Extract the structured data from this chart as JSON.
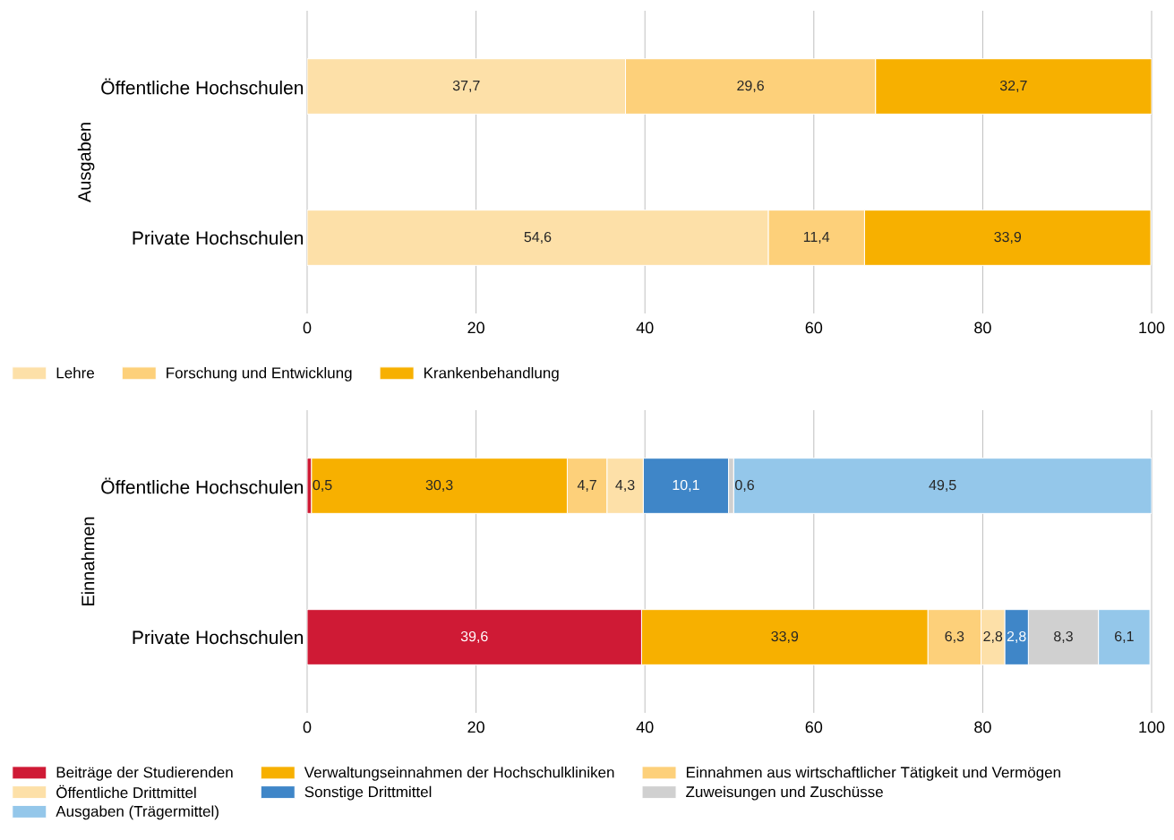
{
  "chart_data": [
    {
      "type": "bar",
      "orientation": "horizontal",
      "stacked": true,
      "ylabel": "Ausgaben",
      "categories": [
        "Öffentliche Hochschulen",
        "Private Hochschulen"
      ],
      "xlim": [
        0,
        100
      ],
      "xticks": [
        0,
        20,
        40,
        60,
        80,
        100
      ],
      "grid": "x",
      "legend": "bottom",
      "series": [
        {
          "name": "Lehre",
          "color": "#fde0a8",
          "values": [
            37.7,
            54.6
          ],
          "value_labels": [
            "37,7",
            "54,6"
          ]
        },
        {
          "name": "Forschung und Entwicklung",
          "color": "#fdd07a",
          "values": [
            29.6,
            11.4
          ],
          "value_labels": [
            "29,6",
            "11,4"
          ]
        },
        {
          "name": "Krankenbehandlung",
          "color": "#f7b000",
          "values": [
            32.7,
            33.9
          ],
          "value_labels": [
            "32,7",
            "33,9"
          ]
        }
      ]
    },
    {
      "type": "bar",
      "orientation": "horizontal",
      "stacked": true,
      "ylabel": "Einnahmen",
      "categories": [
        "Öffentliche Hochschulen",
        "Private Hochschulen"
      ],
      "xlim": [
        0,
        100
      ],
      "xticks": [
        0,
        20,
        40,
        60,
        80,
        100
      ],
      "grid": "x",
      "legend": "bottom",
      "series": [
        {
          "name": "Beiträge der Studierenden",
          "color": "#cf1a35",
          "values": [
            0.5,
            39.6
          ],
          "value_labels": [
            "0,5",
            "39,6"
          ]
        },
        {
          "name": "Verwaltungseinnahmen der Hochschulkliniken",
          "color": "#f7b000",
          "values": [
            30.3,
            33.9
          ],
          "value_labels": [
            "30,3",
            "33,9"
          ]
        },
        {
          "name": "Einnahmen aus wirtschaftlicher Tätigkeit und Vermögen",
          "color": "#fdd07a",
          "values": [
            4.7,
            6.3
          ],
          "value_labels": [
            "4,7",
            "6,3"
          ]
        },
        {
          "name": "Öffentliche Drittmittel",
          "color": "#fde0a8",
          "values": [
            4.3,
            2.8
          ],
          "value_labels": [
            "4,3",
            "2,8"
          ]
        },
        {
          "name": "Sonstige Drittmittel",
          "color": "#3f86c8",
          "values": [
            10.1,
            2.8
          ],
          "value_labels": [
            "10,1",
            "2,8"
          ]
        },
        {
          "name": "Zuweisungen und Zuschüsse",
          "color": "#d0d0d0",
          "values": [
            0.6,
            8.3
          ],
          "value_labels": [
            "0,6",
            "8,3"
          ]
        },
        {
          "name": "Ausgaben (Trägermittel)",
          "color": "#94c7ea",
          "values": [
            49.5,
            6.1
          ],
          "value_labels": [
            "49,5",
            "6,1"
          ]
        }
      ]
    }
  ]
}
